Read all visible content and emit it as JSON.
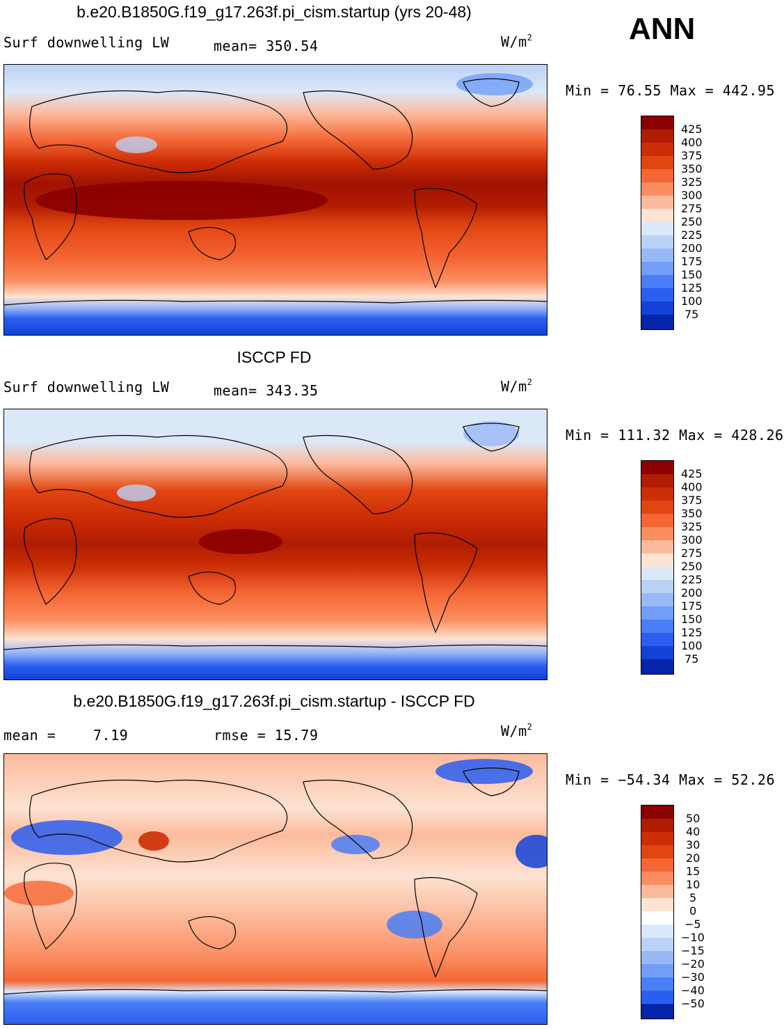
{
  "season": "ANN",
  "panels": [
    {
      "title": "b.e20.B1850G.f19_g17.263f.pi_cism.startup (yrs 20-48)",
      "variable_label": "Surf downwelling LW",
      "stat_text": "mean=  350.54",
      "stat2_text": "",
      "units_base": "W/m",
      "units_sup": "2",
      "minmax_text": "Min =  76.55 Max = 442.95",
      "colorbar": {
        "labels": [
          "425",
          "400",
          "375",
          "350",
          "325",
          "300",
          "275",
          "250",
          "225",
          "200",
          "175",
          "150",
          "125",
          "100",
          "75"
        ],
        "colors": [
          "#8b0000",
          "#b01c02",
          "#cc2d05",
          "#e14612",
          "#f46634",
          "#fb8e61",
          "#fcba9c",
          "#fde3d2",
          "#dbe8f8",
          "#bcd1f6",
          "#99b8f8",
          "#729ef8",
          "#4a7ef5",
          "#2a5ef0",
          "#1242d8",
          "#0624a8"
        ]
      }
    },
    {
      "title": "ISCCP FD",
      "variable_label": "Surf downwelling LW",
      "stat_text": "mean=  343.35",
      "stat2_text": "",
      "units_base": "W/m",
      "units_sup": "2",
      "minmax_text": "Min = 111.32 Max = 428.26",
      "colorbar": {
        "labels": [
          "425",
          "400",
          "375",
          "350",
          "325",
          "300",
          "275",
          "250",
          "225",
          "200",
          "175",
          "150",
          "125",
          "100",
          "75"
        ],
        "colors": [
          "#8b0000",
          "#b01c02",
          "#cc2d05",
          "#e14612",
          "#f46634",
          "#fb8e61",
          "#fcba9c",
          "#fde3d2",
          "#dbe8f8",
          "#bcd1f6",
          "#99b8f8",
          "#729ef8",
          "#4a7ef5",
          "#2a5ef0",
          "#1242d8",
          "#0624a8"
        ]
      }
    },
    {
      "title": "b.e20.B1850G.f19_g17.263f.pi_cism.startup - ISCCP FD",
      "variable_label": "mean =",
      "stat_text": "7.19",
      "stat2_text": "rmse =   15.79",
      "units_base": "W/m",
      "units_sup": "2",
      "minmax_text": "Min = −54.34 Max =  52.26",
      "colorbar": {
        "labels": [
          "50",
          "40",
          "30",
          "20",
          "15",
          "10",
          "5",
          "0",
          "−5",
          "−10",
          "−15",
          "−20",
          "−30",
          "−40",
          "−50"
        ],
        "colors": [
          "#8b0000",
          "#b01c02",
          "#cc2d05",
          "#e14612",
          "#f46634",
          "#fb8e61",
          "#fcba9c",
          "#fde3d2",
          "#ffffff",
          "#dbe8f8",
          "#bcd1f6",
          "#99b8f8",
          "#729ef8",
          "#4a7ef5",
          "#2a5ef0",
          "#0624a8"
        ]
      }
    }
  ]
}
